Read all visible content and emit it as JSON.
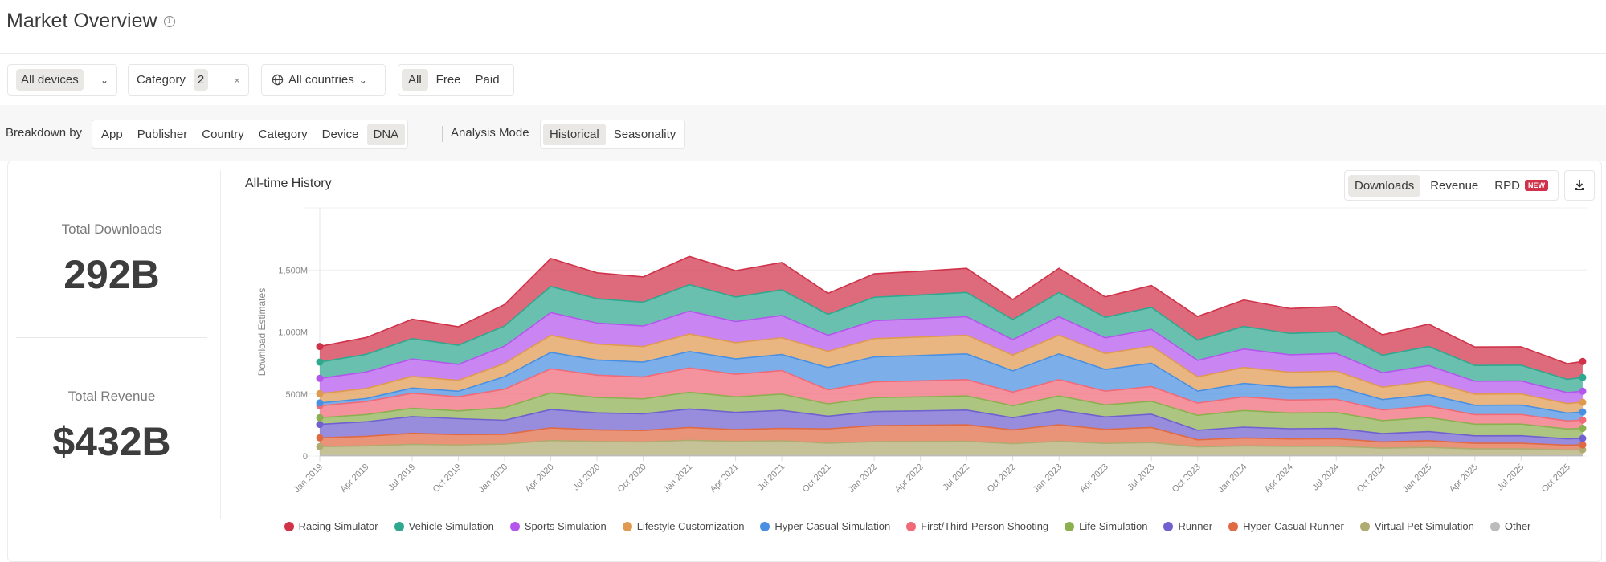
{
  "header": {
    "title": "Market Overview",
    "info_icon": "info-icon"
  },
  "filters": {
    "devices": "All devices",
    "category_label": "Category",
    "category_count": "2",
    "clear": "×",
    "countries": "All countries",
    "price_options": [
      "All",
      "Free",
      "Paid"
    ],
    "price_selected": "All"
  },
  "breakdown": {
    "label": "Breakdown by",
    "options": [
      "App",
      "Publisher",
      "Country",
      "Category",
      "Device",
      "DNA"
    ],
    "selected": "DNA",
    "analysis_label": "Analysis Mode",
    "analysis_options": [
      "Historical",
      "Seasonality"
    ],
    "analysis_selected": "Historical"
  },
  "stats": {
    "downloads_label": "Total Downloads",
    "downloads_value": "292B",
    "revenue_label": "Total Revenue",
    "revenue_value": "$432B"
  },
  "chart_header": {
    "title": "All-time History",
    "metrics": [
      "Downloads",
      "Revenue",
      "RPD"
    ],
    "selected": "Downloads",
    "new_badge": "NEW",
    "download_icon": "download-icon"
  },
  "chart_data": {
    "type": "area",
    "stacked": true,
    "title": "All-time History",
    "ylabel": "Download Estimates",
    "xlabel": "",
    "ylim": [
      0,
      2000
    ],
    "y_unit": "M",
    "y_ticks": [
      {
        "value": 0,
        "label": "0"
      },
      {
        "value": 500,
        "label": "500M"
      },
      {
        "value": 1000,
        "label": "1,000M"
      },
      {
        "value": 1500,
        "label": "1,500M"
      }
    ],
    "x_ticks": [
      "Jan 2019",
      "Apr 2019",
      "Jul 2019",
      "Oct 2019",
      "Jan 2020",
      "Apr 2020",
      "Jul 2020",
      "Oct 2020",
      "Jan 2021",
      "Apr 2021",
      "Jul 2021",
      "Oct 2021",
      "Jan 2022",
      "Apr 2022",
      "Jul 2022",
      "Oct 2022",
      "Jan 2023",
      "Apr 2023",
      "Jul 2023",
      "Oct 2023",
      "Jan 2024",
      "Apr 2024",
      "Jul 2024",
      "Oct 2024",
      "Jan 2025",
      "Apr 2025",
      "Jul 2025",
      "Oct 2025"
    ],
    "grid": true,
    "legend": "bottom",
    "x": [
      "2019-01",
      "2019-04",
      "2019-07",
      "2019-10",
      "2020-01",
      "2020-04",
      "2020-07",
      "2020-10",
      "2021-01",
      "2021-04",
      "2021-07",
      "2021-10",
      "2022-01",
      "2022-04",
      "2022-07",
      "2022-10",
      "2023-01",
      "2023-04",
      "2023-07",
      "2023-10",
      "2024-01",
      "2024-04",
      "2024-07",
      "2024-10",
      "2025-01",
      "2025-04",
      "2025-07",
      "2025-10",
      "2025-11"
    ],
    "series": [
      {
        "name": "Racing Simulator",
        "color": "#d0324a",
        "values": [
          126,
          136,
          157,
          149,
          173,
          226,
          209,
          204,
          228,
          212,
          221,
          169,
          189,
          192,
          195,
          162,
          195,
          165,
          177,
          191,
          213,
          201,
          204,
          165,
          180,
          149,
          149,
          126,
          129
        ]
      },
      {
        "name": "Vehicle Simulation",
        "color": "#2fa890",
        "values": [
          131,
          142,
          164,
          155,
          162,
          211,
          196,
          192,
          213,
          198,
          207,
          169,
          189,
          192,
          195,
          162,
          195,
          165,
          177,
          163,
          182,
          172,
          174,
          141,
          154,
          127,
          127,
          107,
          110
        ]
      },
      {
        "name": "Sports Simulation",
        "color": "#b456ec",
        "values": [
          123,
          133,
          140,
          128,
          140,
          183,
          170,
          166,
          185,
          171,
          179,
          129,
          145,
          147,
          149,
          125,
          149,
          127,
          136,
          133,
          149,
          141,
          143,
          116,
          126,
          104,
          104,
          88,
          90
        ]
      },
      {
        "name": "Lifestyle Customization",
        "color": "#e09a50",
        "values": [
          75,
          81,
          94,
          88,
          106,
          138,
          128,
          125,
          140,
          130,
          135,
          131,
          147,
          149,
          151,
          126,
          151,
          128,
          137,
          115,
          129,
          122,
          124,
          100,
          109,
          90,
          90,
          76,
          78
        ]
      },
      {
        "name": "Hyper-Casual Simulation",
        "color": "#4a90e2",
        "values": [
          22,
          24,
          42,
          44,
          101,
          132,
          122,
          120,
          133,
          124,
          129,
          179,
          201,
          204,
          207,
          172,
          207,
          175,
          188,
          96,
          108,
          102,
          103,
          84,
          91,
          75,
          76,
          64,
          65
        ]
      },
      {
        "name": "First/Third-Person Shooting",
        "color": "#f06a78",
        "values": [
          97,
          105,
          121,
          114,
          149,
          194,
          180,
          176,
          196,
          182,
          190,
          114,
          128,
          129,
          131,
          110,
          131,
          111,
          119,
          99,
          110,
          104,
          106,
          86,
          93,
          77,
          77,
          65,
          67
        ]
      },
      {
        "name": "Life Simulation",
        "color": "#8cb050",
        "values": [
          54,
          58,
          67,
          63,
          102,
          134,
          124,
          121,
          135,
          125,
          131,
          99,
          111,
          113,
          115,
          96,
          115,
          97,
          104,
          120,
          134,
          127,
          128,
          104,
          113,
          94,
          94,
          79,
          81
        ]
      },
      {
        "name": "Runner",
        "color": "#7060d0",
        "values": [
          108,
          117,
          135,
          128,
          113,
          148,
          137,
          134,
          149,
          139,
          145,
          102,
          114,
          116,
          118,
          98,
          118,
          100,
          107,
          77,
          87,
          82,
          83,
          67,
          73,
          60,
          61,
          51,
          52
        ]
      },
      {
        "name": "Hyper-Casual Runner",
        "color": "#e06a44",
        "values": [
          71,
          77,
          89,
          84,
          78,
          102,
          94,
          92,
          103,
          95,
          100,
          115,
          129,
          131,
          133,
          111,
          133,
          113,
          121,
          57,
          64,
          60,
          61,
          50,
          54,
          45,
          45,
          38,
          39
        ]
      },
      {
        "name": "Virtual Pet Simulation",
        "color": "#b0ab70",
        "values": [
          73,
          79,
          91,
          86,
          94,
          122,
          114,
          111,
          124,
          115,
          120,
          101,
          113,
          114,
          116,
          97,
          116,
          99,
          106,
          71,
          79,
          75,
          76,
          61,
          67,
          55,
          55,
          47,
          48
        ]
      },
      {
        "name": "Other",
        "color": "#bbbbbb",
        "values": [
          3,
          3,
          3,
          3,
          3,
          3,
          3,
          3,
          3,
          3,
          3,
          3,
          3,
          3,
          3,
          3,
          3,
          3,
          3,
          3,
          3,
          3,
          3,
          3,
          3,
          3,
          3,
          3,
          3
        ]
      }
    ]
  }
}
